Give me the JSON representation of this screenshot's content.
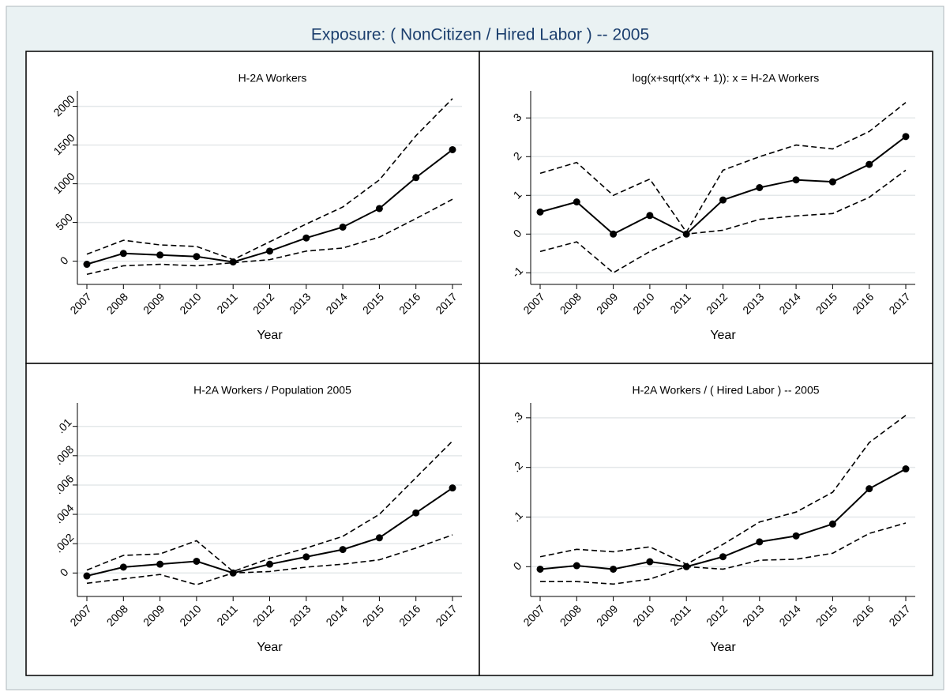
{
  "title": "Exposure: ( NonCitizen / Hired Labor ) -- 2005",
  "chart_data": [
    {
      "type": "line",
      "title": "H-2A Workers",
      "x_label": "Year",
      "categories": [
        "2007",
        "2008",
        "2009",
        "2010",
        "2011",
        "2012",
        "2013",
        "2014",
        "2015",
        "2016",
        "2017"
      ],
      "ylim": [
        -300,
        2200
      ],
      "yticks": [
        0,
        500,
        1000,
        1500,
        2000
      ],
      "grid": true,
      "series": [
        {
          "color": "#000000",
          "line_style": "solid",
          "markers": true,
          "values": [
            -40,
            100,
            80,
            60,
            -10,
            130,
            300,
            440,
            680,
            1080,
            1440
          ]
        },
        {
          "color": "#000000",
          "line_style": "dashed",
          "markers": false,
          "values": [
            90,
            270,
            210,
            190,
            20,
            250,
            480,
            700,
            1050,
            1620,
            2100
          ]
        },
        {
          "color": "#000000",
          "line_style": "dashed",
          "markers": false,
          "values": [
            -170,
            -60,
            -40,
            -60,
            -20,
            20,
            130,
            170,
            310,
            550,
            800
          ]
        }
      ]
    },
    {
      "type": "line",
      "title": "log(x+sqrt(x*x + 1)):  x = H-2A Workers",
      "x_label": "Year",
      "categories": [
        "2007",
        "2008",
        "2009",
        "2010",
        "2011",
        "2012",
        "2013",
        "2014",
        "2015",
        "2016",
        "2017"
      ],
      "ylim": [
        -1.3,
        3.7
      ],
      "yticks": [
        -1,
        0,
        1,
        2,
        3
      ],
      "grid": true,
      "series": [
        {
          "color": "#000000",
          "line_style": "solid",
          "markers": true,
          "values": [
            0.57,
            0.83,
            0.0,
            0.48,
            0.0,
            0.88,
            1.2,
            1.4,
            1.35,
            1.8,
            2.52
          ]
        },
        {
          "color": "#000000",
          "line_style": "dashed",
          "markers": false,
          "values": [
            1.57,
            1.85,
            1.0,
            1.42,
            0.05,
            1.65,
            2.0,
            2.3,
            2.2,
            2.65,
            3.4
          ]
        },
        {
          "color": "#000000",
          "line_style": "dashed",
          "markers": false,
          "values": [
            -0.45,
            -0.2,
            -1.0,
            -0.45,
            0.0,
            0.1,
            0.38,
            0.47,
            0.53,
            0.95,
            1.65
          ]
        }
      ]
    },
    {
      "type": "line",
      "title": "H-2A Workers / Population 2005",
      "x_label": "Year",
      "categories": [
        "2007",
        "2008",
        "2009",
        "2010",
        "2011",
        "2012",
        "2013",
        "2014",
        "2015",
        "2016",
        "2017"
      ],
      "ylim": [
        -0.0016,
        0.0116
      ],
      "yticks": [
        0,
        {
          "value": 0.002,
          "label": ".002"
        },
        {
          "value": 0.004,
          "label": ".004"
        },
        {
          "value": 0.006,
          "label": ".006"
        },
        {
          "value": 0.008,
          "label": ".008"
        },
        {
          "value": 0.01,
          "label": ".01"
        }
      ],
      "grid": true,
      "series": [
        {
          "color": "#000000",
          "line_style": "solid",
          "markers": true,
          "values": [
            -0.0002,
            0.0004,
            0.0006,
            0.0008,
            0.0,
            0.0006,
            0.0011,
            0.0016,
            0.0024,
            0.0041,
            0.0058
          ]
        },
        {
          "color": "#000000",
          "line_style": "dashed",
          "markers": false,
          "values": [
            0.0002,
            0.0012,
            0.0013,
            0.0022,
            0.0001,
            0.001,
            0.0017,
            0.0025,
            0.004,
            0.0065,
            0.009
          ]
        },
        {
          "color": "#000000",
          "line_style": "dashed",
          "markers": false,
          "values": [
            -0.0007,
            -0.0004,
            -0.0001,
            -0.0008,
            0.0,
            0.0001,
            0.0004,
            0.0006,
            0.0009,
            0.0017,
            0.0026
          ]
        }
      ]
    },
    {
      "type": "line",
      "title": "H-2A Workers / ( Hired Labor ) -- 2005",
      "x_label": "Year",
      "categories": [
        "2007",
        "2008",
        "2009",
        "2010",
        "2011",
        "2012",
        "2013",
        "2014",
        "2015",
        "2016",
        "2017"
      ],
      "ylim": [
        -0.06,
        0.33
      ],
      "yticks": [
        0,
        {
          "value": 0.1,
          "label": ".1"
        },
        {
          "value": 0.2,
          "label": ".2"
        },
        {
          "value": 0.3,
          "label": ".3"
        }
      ],
      "grid": true,
      "series": [
        {
          "color": "#000000",
          "line_style": "solid",
          "markers": true,
          "values": [
            -0.005,
            0.002,
            -0.005,
            0.01,
            0.0,
            0.02,
            0.05,
            0.062,
            0.086,
            0.157,
            0.197
          ]
        },
        {
          "color": "#000000",
          "line_style": "dashed",
          "markers": false,
          "values": [
            0.02,
            0.035,
            0.03,
            0.04,
            0.005,
            0.045,
            0.09,
            0.11,
            0.15,
            0.25,
            0.305
          ]
        },
        {
          "color": "#000000",
          "line_style": "dashed",
          "markers": false,
          "values": [
            -0.03,
            -0.03,
            -0.035,
            -0.025,
            0.0,
            -0.005,
            0.013,
            0.015,
            0.027,
            0.067,
            0.088
          ]
        }
      ]
    }
  ]
}
